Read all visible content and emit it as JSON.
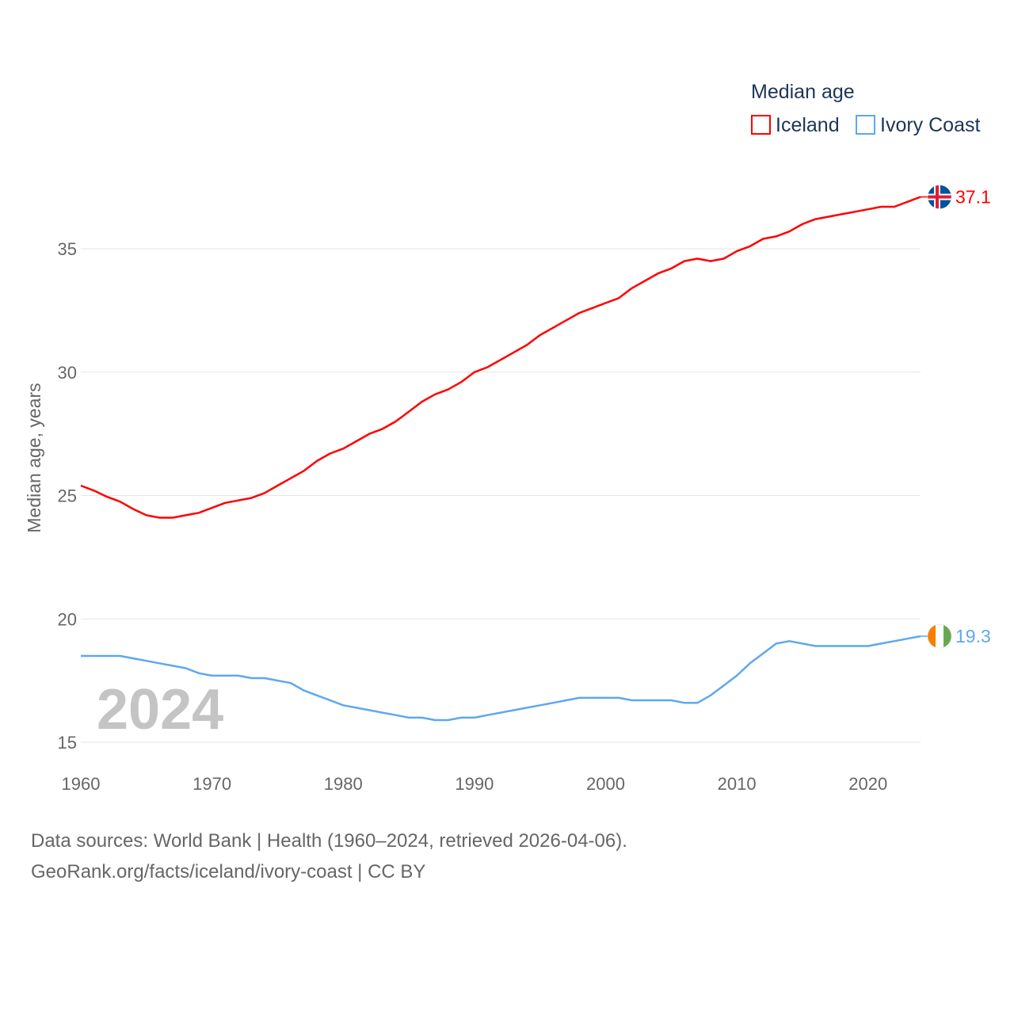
{
  "chart_data": {
    "type": "line",
    "title": "Median age",
    "xlabel": "",
    "ylabel": "Median age, years",
    "xlim": [
      1960,
      2024
    ],
    "ylim": [
      15,
      37.6
    ],
    "x_ticks": [
      "1960",
      "1970",
      "1980",
      "1990",
      "2000",
      "2010",
      "2020"
    ],
    "y_ticks": [
      "15",
      "20",
      "25",
      "30",
      "35"
    ],
    "grid": true,
    "legend_placement": "top-right",
    "year_label": "2024",
    "x": [
      1960,
      1961,
      1962,
      1963,
      1964,
      1965,
      1966,
      1967,
      1968,
      1969,
      1970,
      1971,
      1972,
      1973,
      1974,
      1975,
      1976,
      1977,
      1978,
      1979,
      1980,
      1981,
      1982,
      1983,
      1984,
      1985,
      1986,
      1987,
      1988,
      1989,
      1990,
      1991,
      1992,
      1993,
      1994,
      1995,
      1996,
      1997,
      1998,
      1999,
      2000,
      2001,
      2002,
      2003,
      2004,
      2005,
      2006,
      2007,
      2008,
      2009,
      2010,
      2011,
      2012,
      2013,
      2014,
      2015,
      2016,
      2017,
      2018,
      2019,
      2020,
      2021,
      2022,
      2023,
      2024
    ],
    "series": [
      {
        "name": "Iceland",
        "color": "#ff0000",
        "end_label": "37.1",
        "flag": "iceland-flag",
        "values": [
          25.4,
          25.2,
          24.95,
          24.75,
          24.45,
          24.2,
          24.1,
          24.1,
          24.2,
          24.3,
          24.5,
          24.7,
          24.8,
          24.9,
          25.1,
          25.4,
          25.7,
          26.0,
          26.4,
          26.7,
          26.9,
          27.2,
          27.5,
          27.7,
          28.0,
          28.4,
          28.8,
          29.1,
          29.3,
          29.6,
          30.0,
          30.2,
          30.5,
          30.8,
          31.1,
          31.5,
          31.8,
          32.1,
          32.4,
          32.6,
          32.8,
          33.0,
          33.4,
          33.7,
          34.0,
          34.2,
          34.5,
          34.6,
          34.5,
          34.6,
          34.9,
          35.1,
          35.4,
          35.5,
          35.7,
          36.0,
          36.2,
          36.3,
          36.4,
          36.5,
          36.6,
          36.7,
          36.7,
          36.9,
          37.1
        ]
      },
      {
        "name": "Ivory Coast",
        "color": "#5ea8ee",
        "end_label": "19.3",
        "flag": "ivory-coast-flag",
        "values": [
          18.5,
          18.5,
          18.5,
          18.5,
          18.4,
          18.3,
          18.2,
          18.1,
          18.0,
          17.8,
          17.7,
          17.7,
          17.7,
          17.6,
          17.6,
          17.5,
          17.4,
          17.1,
          16.9,
          16.7,
          16.5,
          16.4,
          16.3,
          16.2,
          16.1,
          16.0,
          16.0,
          15.9,
          15.9,
          16.0,
          16.0,
          16.1,
          16.2,
          16.3,
          16.4,
          16.5,
          16.6,
          16.7,
          16.8,
          16.8,
          16.8,
          16.8,
          16.7,
          16.7,
          16.7,
          16.7,
          16.6,
          16.6,
          16.9,
          17.3,
          17.7,
          18.2,
          18.6,
          19.0,
          19.1,
          19.0,
          18.9,
          18.9,
          18.9,
          18.9,
          18.9,
          19.0,
          19.1,
          19.2,
          19.3
        ]
      }
    ]
  },
  "footer": {
    "sources": "Data sources: World Bank | Health (1960–2024, retrieved 2026-04-06).",
    "link": "GeoRank.org/facts/iceland/ivory-coast | CC BY"
  }
}
